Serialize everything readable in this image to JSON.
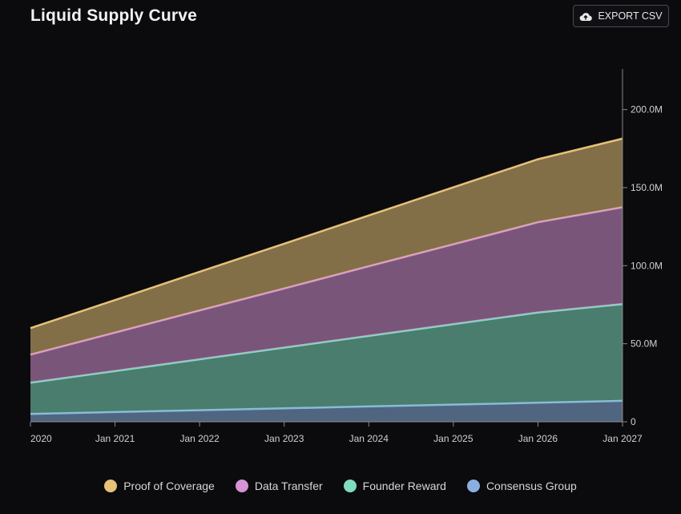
{
  "header": {
    "title": "Liquid Supply Curve",
    "export_label": "EXPORT CSV",
    "export_icon": "cloud-upload-icon"
  },
  "chart_data": {
    "type": "area",
    "stacked": true,
    "title": "Liquid Supply Curve",
    "x": [
      "2020",
      "Jan 2021",
      "Jan 2022",
      "Jan 2023",
      "Jan 2024",
      "Jan 2025",
      "Jan 2026",
      "Jan 2027"
    ],
    "ylim": [
      0,
      225
    ],
    "y_ticks": [
      0,
      50,
      100,
      150,
      200
    ],
    "y_tick_labels": [
      "0",
      "50.0M",
      "100.0M",
      "150.0M",
      "200.0M"
    ],
    "y_unit": "M",
    "legend_position": "bottom",
    "grid": false,
    "series": [
      {
        "name": "Consensus Group",
        "color": "#8ab0e0",
        "values": [
          5,
          6.2,
          7.4,
          8.6,
          9.8,
          11.0,
          12.2,
          13.4
        ]
      },
      {
        "name": "Founder Reward",
        "color": "#7fdcbf",
        "values": [
          20,
          26.3,
          32.6,
          38.9,
          45.2,
          51.5,
          57.8,
          62
        ]
      },
      {
        "name": "Data Transfer",
        "color": "#d793d6",
        "values": [
          18,
          24.6,
          31.3,
          37.9,
          44.6,
          51.2,
          57.8,
          62
        ]
      },
      {
        "name": "Proof of Coverage",
        "color": "#e6c27a",
        "values": [
          17,
          20.9,
          24.8,
          28.7,
          32.6,
          36.5,
          40.4,
          44
        ]
      }
    ]
  },
  "legend": {
    "items": [
      {
        "label": "Proof of Coverage",
        "color": "#e6c27a"
      },
      {
        "label": "Data Transfer",
        "color": "#d793d6"
      },
      {
        "label": "Founder Reward",
        "color": "#7fdcbf"
      },
      {
        "label": "Consensus Group",
        "color": "#8ab0e0"
      }
    ]
  }
}
